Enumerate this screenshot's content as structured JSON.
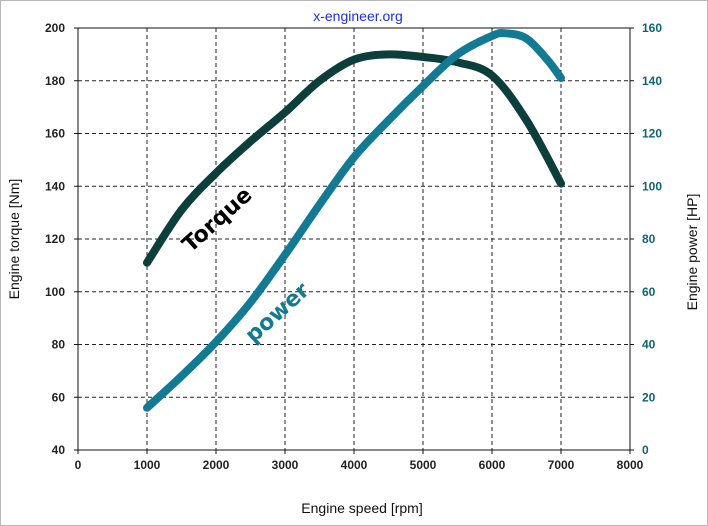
{
  "watermark": "x-engineer.org",
  "colors": {
    "torque": "#0c3e3c",
    "power": "#137a94",
    "right_axis_ticks": "#0f6478",
    "grid": "#222222",
    "frame_bg": "#ffffff"
  },
  "chart_data": {
    "type": "line",
    "title": "",
    "watermark": "x-engineer.org",
    "xlabel": "Engine speed [rpm]",
    "ylabel_left": "Engine torque [Nm]",
    "ylabel_right": "Engine power [HP]",
    "xlim": [
      0,
      8000
    ],
    "ylim_left": [
      40,
      200
    ],
    "ylim_right": [
      0,
      160
    ],
    "xticks": [
      "0",
      "1000",
      "2000",
      "3000",
      "4000",
      "5000",
      "6000",
      "7000",
      "8000"
    ],
    "yticks_left": [
      "40",
      "60",
      "80",
      "100",
      "120",
      "140",
      "160",
      "180",
      "200"
    ],
    "yticks_right": [
      "0",
      "20",
      "40",
      "60",
      "80",
      "100",
      "120",
      "140",
      "160"
    ],
    "grid": true,
    "legend": "none (series labelled inline on the curves)",
    "series": [
      {
        "name": "Torque",
        "axis": "left",
        "color": "#0c3e3c",
        "x": [
          1000,
          1500,
          2000,
          2500,
          3000,
          3500,
          4000,
          4500,
          5000,
          5500,
          6000,
          6500,
          7000
        ],
        "y": [
          111,
          131,
          145,
          157,
          168,
          180,
          188,
          190,
          189,
          187,
          182,
          165,
          141
        ]
      },
      {
        "name": "power",
        "axis": "right",
        "color": "#137a94",
        "x": [
          1000,
          1500,
          2000,
          2500,
          3000,
          3500,
          4000,
          4500,
          5000,
          5500,
          6000,
          6200,
          6500,
          6800,
          7000
        ],
        "y": [
          16,
          28,
          41,
          56,
          74,
          93,
          111,
          125,
          138,
          150,
          157,
          158,
          156,
          148,
          141
        ]
      }
    ]
  }
}
